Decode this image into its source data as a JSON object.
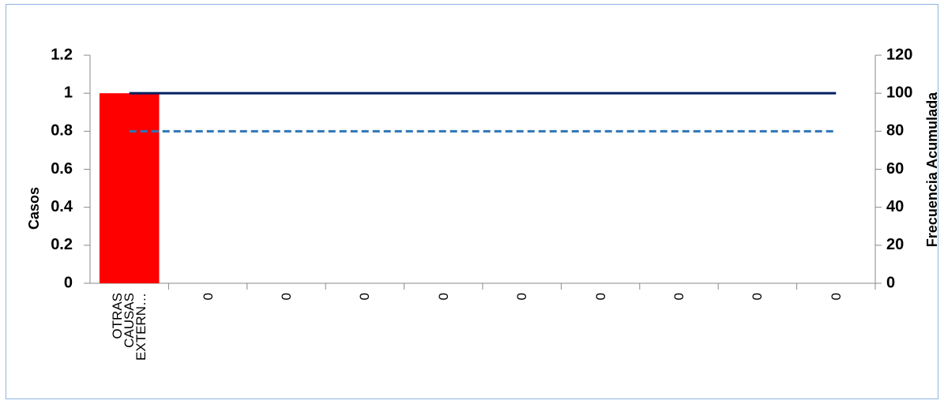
{
  "chart_data": {
    "type": "pareto",
    "categories": [
      "OTRAS CAUSAS EXTERN…",
      "0",
      "0",
      "0",
      "0",
      "0",
      "0",
      "0",
      "0",
      "0"
    ],
    "series": [
      {
        "type": "bar",
        "color": "#ff0000",
        "values": [
          1,
          0,
          0,
          0,
          0,
          0,
          0,
          0,
          0,
          0
        ]
      },
      {
        "type": "line",
        "axis": "y2",
        "color": "#002060",
        "dash": false,
        "values": [
          100,
          100,
          100,
          100,
          100,
          100,
          100,
          100,
          100,
          100
        ]
      },
      {
        "type": "line",
        "axis": "y2",
        "color": "#2e75b6",
        "dash": true,
        "values": [
          80,
          80,
          80,
          80,
          80,
          80,
          80,
          80,
          80,
          80
        ]
      }
    ],
    "ylabel": "Casos",
    "y2label": "Frecuencia Acumulada",
    "ylim": [
      0,
      1.2
    ],
    "yticks": [
      0,
      0.2,
      0.4,
      0.6,
      0.8,
      1,
      1.2
    ],
    "y2lim": [
      0,
      120
    ],
    "y2ticks": [
      0,
      20,
      40,
      60,
      80,
      100,
      120
    ]
  }
}
